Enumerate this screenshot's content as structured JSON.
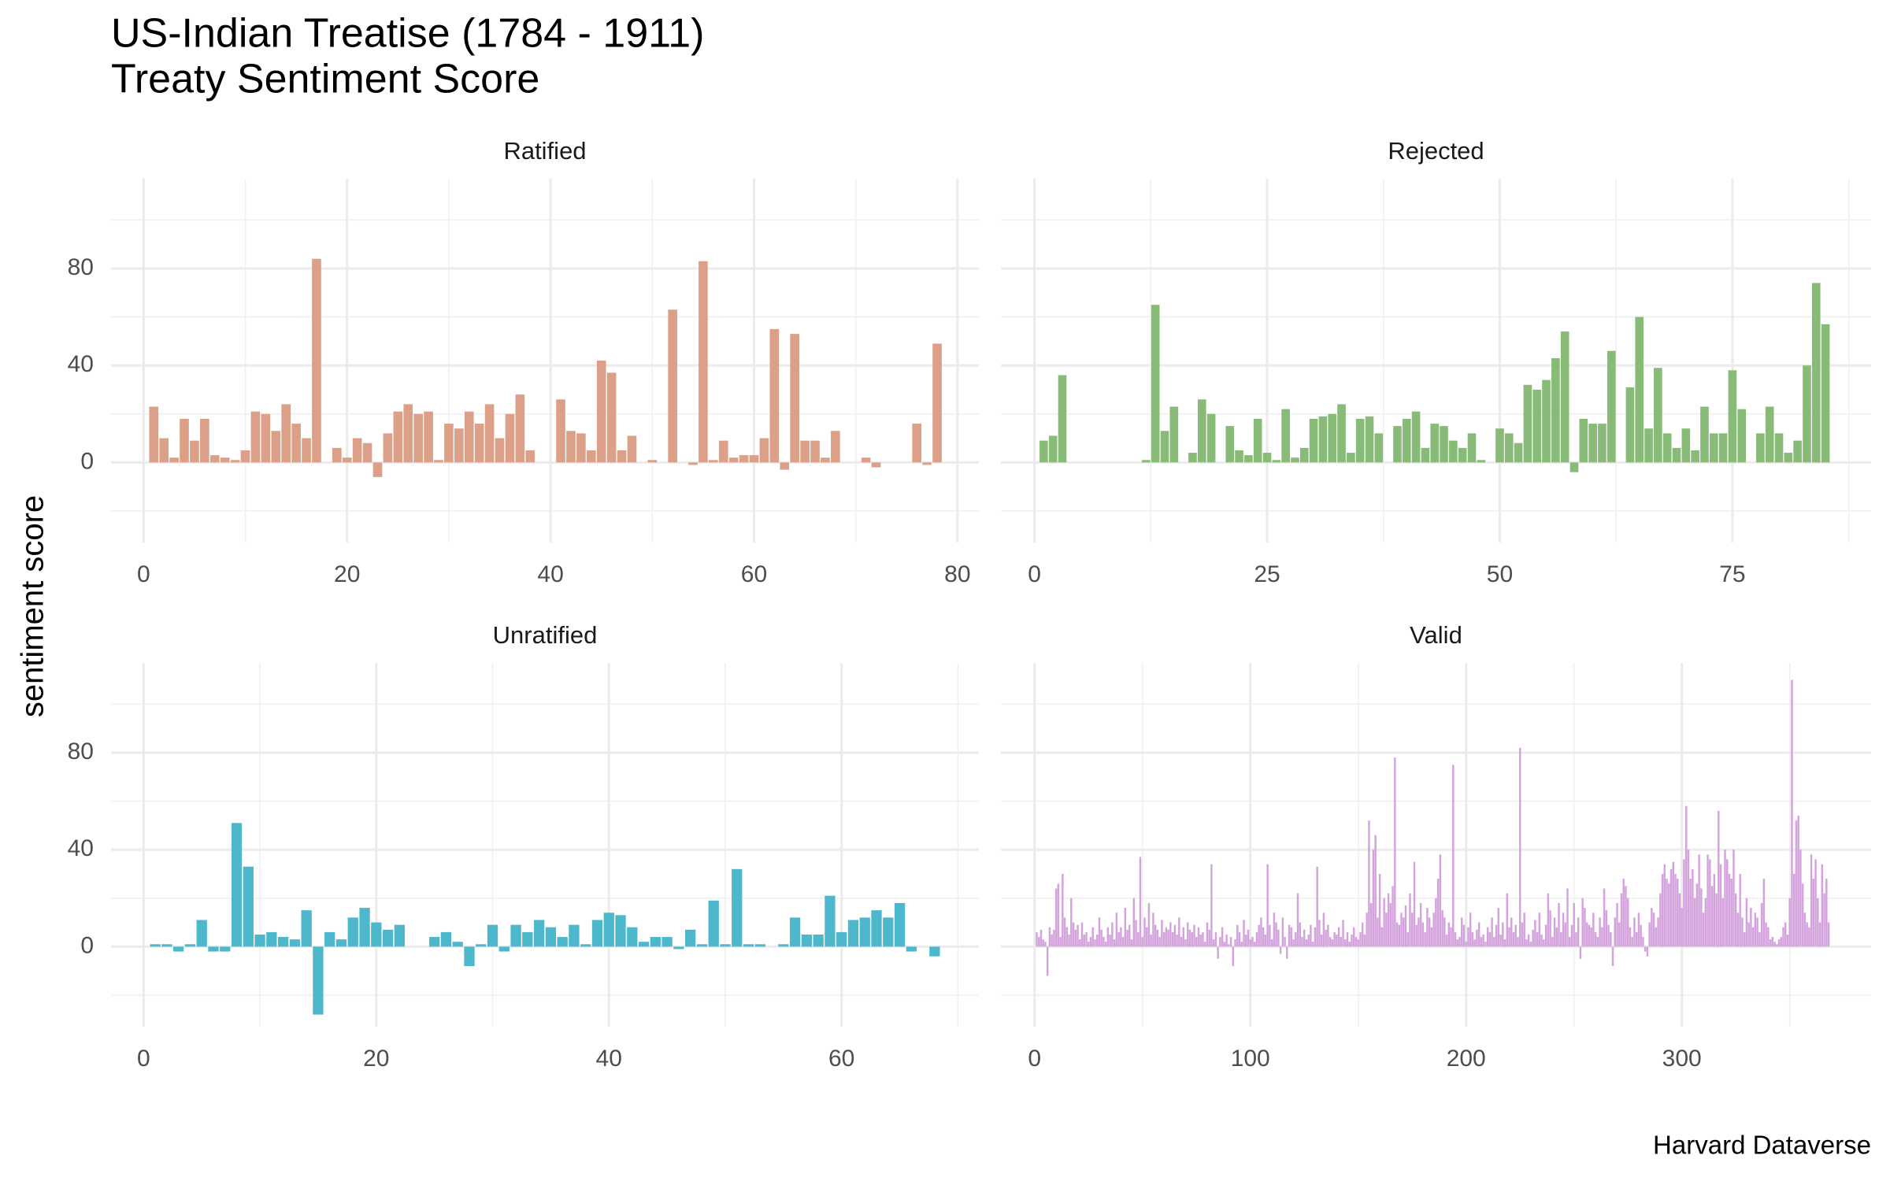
{
  "title": "US-Indian Treatise (1784 - 1911)",
  "subtitle": "Treaty Sentiment Score",
  "ylabel": "sentiment score",
  "caption": "Harvard Dataverse",
  "chart_data": [
    {
      "type": "bar",
      "title": "Ratified",
      "color": "#dba087",
      "grid": true,
      "xlim": [
        -3.2,
        82.1
      ],
      "xticks": [
        0,
        20,
        40,
        60,
        80
      ],
      "x_minor_ticks": [
        10,
        30,
        50,
        70
      ],
      "ylim": [
        -33,
        117
      ],
      "yticks": [
        0,
        40,
        80
      ],
      "y_minor_ticks": [
        -20,
        20,
        60,
        100
      ],
      "x": [
        1,
        2,
        3,
        4,
        5,
        6,
        7,
        8,
        9,
        10,
        11,
        12,
        13,
        14,
        15,
        16,
        17,
        18,
        19,
        20,
        21,
        22,
        23,
        24,
        25,
        26,
        27,
        28,
        29,
        30,
        31,
        32,
        33,
        34,
        35,
        36,
        37,
        38,
        39,
        40,
        41,
        42,
        43,
        44,
        45,
        46,
        47,
        48,
        49,
        50,
        51,
        52,
        53,
        54,
        55,
        56,
        57,
        58,
        59,
        60,
        61,
        62,
        63,
        64,
        65,
        66,
        67,
        68,
        69,
        70,
        71,
        72,
        73,
        74,
        75,
        76,
        77,
        78
      ],
      "values": [
        23,
        10,
        2,
        18,
        9,
        18,
        3,
        2,
        1,
        5,
        21,
        20,
        13,
        24,
        16,
        10,
        84,
        0,
        6,
        2,
        10,
        8,
        -6,
        12,
        21,
        24,
        20,
        21,
        1,
        16,
        14,
        21,
        16,
        24,
        10,
        20,
        28,
        5,
        0,
        0,
        26,
        13,
        12,
        5,
        42,
        37,
        5,
        11,
        0,
        1,
        0,
        63,
        0,
        -1,
        83,
        1,
        9,
        2,
        3,
        3,
        10,
        55,
        -3,
        53,
        9,
        9,
        2,
        13,
        0,
        0,
        2,
        -2,
        0,
        0,
        0,
        16,
        -1,
        49
      ]
    },
    {
      "type": "bar",
      "title": "Rejected",
      "color": "#88bb77",
      "grid": true,
      "xlim": [
        -3.6,
        89.9
      ],
      "xticks": [
        0,
        25,
        50,
        75
      ],
      "x_minor_ticks": [
        12.5,
        37.5,
        62.5,
        87.5
      ],
      "ylim": [
        -33,
        117
      ],
      "yticks": [
        0,
        40,
        80
      ],
      "y_minor_ticks": [
        -20,
        20,
        60,
        100
      ],
      "x": [
        1,
        2,
        3,
        4,
        5,
        6,
        7,
        8,
        9,
        10,
        11,
        12,
        13,
        14,
        15,
        16,
        17,
        18,
        19,
        20,
        21,
        22,
        23,
        24,
        25,
        26,
        27,
        28,
        29,
        30,
        31,
        32,
        33,
        34,
        35,
        36,
        37,
        38,
        39,
        40,
        41,
        42,
        43,
        44,
        45,
        46,
        47,
        48,
        49,
        50,
        51,
        52,
        53,
        54,
        55,
        56,
        57,
        58,
        59,
        60,
        61,
        62,
        63,
        64,
        65,
        66,
        67,
        68,
        69,
        70,
        71,
        72,
        73,
        74,
        75,
        76,
        77,
        78,
        79,
        80,
        81,
        82,
        83,
        84,
        85
      ],
      "values": [
        9,
        11,
        36,
        0,
        0,
        0,
        0,
        0,
        0,
        0,
        0,
        1,
        65,
        13,
        23,
        0,
        4,
        26,
        20,
        0,
        15,
        5,
        3,
        18,
        4,
        1,
        22,
        2,
        6,
        18,
        19,
        20,
        24,
        4,
        18,
        19,
        12,
        0,
        15,
        18,
        21,
        6,
        16,
        15,
        9,
        6,
        12,
        1,
        0,
        14,
        12,
        8,
        32,
        30,
        34,
        43,
        54,
        -4,
        18,
        16,
        16,
        46,
        0,
        31,
        60,
        14,
        39,
        12,
        6,
        14,
        5,
        23,
        12,
        12,
        38,
        22,
        0,
        12,
        23,
        12,
        4,
        9,
        40,
        74,
        57
      ]
    },
    {
      "type": "bar",
      "title": "Unratified",
      "color": "#4db8cc",
      "grid": true,
      "xlim": [
        -2.8,
        71.8
      ],
      "xticks": [
        0,
        20,
        40,
        60
      ],
      "x_minor_ticks": [
        10,
        30,
        50,
        70
      ],
      "ylim": [
        -33,
        117
      ],
      "yticks": [
        0,
        40,
        80
      ],
      "y_minor_ticks": [
        -20,
        20,
        60,
        100
      ],
      "x": [
        1,
        2,
        3,
        4,
        5,
        6,
        7,
        8,
        9,
        10,
        11,
        12,
        13,
        14,
        15,
        16,
        17,
        18,
        19,
        20,
        21,
        22,
        23,
        24,
        25,
        26,
        27,
        28,
        29,
        30,
        31,
        32,
        33,
        34,
        35,
        36,
        37,
        38,
        39,
        40,
        41,
        42,
        43,
        44,
        45,
        46,
        47,
        48,
        49,
        50,
        51,
        52,
        53,
        54,
        55,
        56,
        57,
        58,
        59,
        60,
        61,
        62,
        63,
        64,
        65,
        66,
        67,
        68
      ],
      "values": [
        1,
        1,
        -2,
        1,
        11,
        -2,
        -2,
        51,
        33,
        5,
        6,
        4,
        3,
        15,
        -28,
        6,
        3,
        12,
        16,
        10,
        7,
        9,
        0,
        0,
        4,
        6,
        2,
        -8,
        1,
        9,
        -2,
        9,
        6,
        11,
        8,
        4,
        9,
        1,
        11,
        14,
        13,
        8,
        2,
        4,
        4,
        -1,
        7,
        1,
        19,
        1,
        32,
        1,
        1,
        0,
        1,
        12,
        5,
        5,
        21,
        6,
        11,
        12,
        15,
        12,
        18,
        -2,
        0,
        -4
      ]
    },
    {
      "type": "bar",
      "title": "Valid",
      "color": "#d4a3de",
      "grid": true,
      "xlim": [
        -15.6,
        387.7
      ],
      "xticks": [
        0,
        100,
        200,
        300
      ],
      "x_minor_ticks": [
        50,
        150,
        250,
        350
      ],
      "ylim": [
        -33,
        117
      ],
      "yticks": [
        0,
        40,
        80
      ],
      "y_minor_ticks": [
        -20,
        20,
        60,
        100
      ],
      "x": [
        1,
        2,
        3,
        4,
        5,
        6,
        7,
        8,
        9,
        10,
        11,
        12,
        13,
        14,
        15,
        16,
        17,
        18,
        19,
        20,
        21,
        22,
        23,
        24,
        25,
        26,
        27,
        28,
        29,
        30,
        31,
        32,
        33,
        34,
        35,
        36,
        37,
        38,
        39,
        40,
        41,
        42,
        43,
        44,
        45,
        46,
        47,
        48,
        49,
        50,
        51,
        52,
        53,
        54,
        55,
        56,
        57,
        58,
        59,
        60,
        61,
        62,
        63,
        64,
        65,
        66,
        67,
        68,
        69,
        70,
        71,
        72,
        73,
        74,
        75,
        76,
        77,
        78,
        79,
        80,
        81,
        82,
        83,
        84,
        85,
        86,
        87,
        88,
        89,
        90,
        91,
        92,
        93,
        94,
        95,
        96,
        97,
        98,
        99,
        100,
        101,
        102,
        103,
        104,
        105,
        106,
        107,
        108,
        109,
        110,
        111,
        112,
        113,
        114,
        115,
        116,
        117,
        118,
        119,
        120,
        121,
        122,
        123,
        124,
        125,
        126,
        127,
        128,
        129,
        130,
        131,
        132,
        133,
        134,
        135,
        136,
        137,
        138,
        139,
        140,
        141,
        142,
        143,
        144,
        145,
        146,
        147,
        148,
        149,
        150,
        151,
        152,
        153,
        154,
        155,
        156,
        157,
        158,
        159,
        160,
        161,
        162,
        163,
        164,
        165,
        166,
        167,
        168,
        169,
        170,
        171,
        172,
        173,
        174,
        175,
        176,
        177,
        178,
        179,
        180,
        181,
        182,
        183,
        184,
        185,
        186,
        187,
        188,
        189,
        190,
        191,
        192,
        193,
        194,
        195,
        196,
        197,
        198,
        199,
        200,
        201,
        202,
        203,
        204,
        205,
        206,
        207,
        208,
        209,
        210,
        211,
        212,
        213,
        214,
        215,
        216,
        217,
        218,
        219,
        220,
        221,
        222,
        223,
        224,
        225,
        226,
        227,
        228,
        229,
        230,
        231,
        232,
        233,
        234,
        235,
        236,
        237,
        238,
        239,
        240,
        241,
        242,
        243,
        244,
        245,
        246,
        247,
        248,
        249,
        250,
        251,
        252,
        253,
        254,
        255,
        256,
        257,
        258,
        259,
        260,
        261,
        262,
        263,
        264,
        265,
        266,
        267,
        268,
        269,
        270,
        271,
        272,
        273,
        274,
        275,
        276,
        277,
        278,
        279,
        280,
        281,
        282,
        283,
        284,
        285,
        286,
        287,
        288,
        289,
        290,
        291,
        292,
        293,
        294,
        295,
        296,
        297,
        298,
        299,
        300,
        301,
        302,
        303,
        304,
        305,
        306,
        307,
        308,
        309,
        310,
        311,
        312,
        313,
        314,
        315,
        316,
        317,
        318,
        319,
        320,
        321,
        322,
        323,
        324,
        325,
        326,
        327,
        328,
        329,
        330,
        331,
        332,
        333,
        334,
        335,
        336,
        337,
        338,
        339,
        340,
        341,
        342,
        343,
        344,
        345,
        346,
        347,
        348,
        349,
        350,
        351,
        352,
        353,
        354,
        355,
        356,
        357,
        358,
        359,
        360,
        361,
        362,
        363,
        364,
        365,
        366,
        367,
        368
      ],
      "values": [
        6,
        4,
        7,
        3,
        2,
        -12,
        8,
        5,
        7,
        24,
        26,
        4,
        30,
        12,
        8,
        5,
        20,
        10,
        7,
        9,
        3,
        10,
        5,
        6,
        2,
        4,
        8,
        3,
        5,
        12,
        7,
        4,
        2,
        8,
        5,
        10,
        3,
        14,
        6,
        8,
        4,
        16,
        7,
        9,
        3,
        20,
        11,
        6,
        37,
        4,
        12,
        8,
        18,
        5,
        14,
        9,
        7,
        4,
        11,
        6,
        8,
        7,
        10,
        6,
        9,
        5,
        12,
        4,
        8,
        3,
        10,
        7,
        6,
        9,
        4,
        8,
        5,
        6,
        2,
        10,
        7,
        34,
        3,
        6,
        -5,
        4,
        8,
        2,
        5,
        1,
        4,
        -8,
        3,
        9,
        6,
        2,
        11,
        5,
        7,
        3,
        4,
        2,
        6,
        9,
        12,
        8,
        5,
        34,
        9,
        3,
        14,
        10,
        7,
        -3,
        12,
        4,
        -5,
        9,
        8,
        3,
        6,
        22,
        10,
        4,
        7,
        3,
        5,
        9,
        2,
        8,
        33,
        11,
        5,
        14,
        7,
        9,
        4,
        3,
        6,
        5,
        8,
        4,
        11,
        3,
        6,
        2,
        5,
        8,
        4,
        3,
        6,
        10,
        5,
        14,
        52,
        18,
        40,
        46,
        12,
        30,
        8,
        20,
        14,
        22,
        18,
        25,
        78,
        10,
        9,
        14,
        12,
        17,
        6,
        22,
        14,
        35,
        9,
        12,
        18,
        10,
        6,
        16,
        12,
        8,
        14,
        20,
        28,
        38,
        15,
        12,
        5,
        10,
        8,
        75,
        6,
        3,
        4,
        12,
        9,
        2,
        8,
        14,
        6,
        3,
        7,
        10,
        4,
        5,
        2,
        8,
        6,
        12,
        4,
        9,
        16,
        5,
        10,
        3,
        22,
        8,
        12,
        6,
        9,
        4,
        82,
        10,
        14,
        3,
        5,
        2,
        7,
        11,
        6,
        14,
        5,
        3,
        9,
        22,
        15,
        4,
        12,
        8,
        18,
        6,
        14,
        10,
        24,
        4,
        9,
        18,
        6,
        12,
        -5,
        20,
        16,
        10,
        9,
        8,
        14,
        6,
        4,
        12,
        8,
        24,
        15,
        9,
        6,
        -8,
        12,
        18,
        10,
        22,
        28,
        25,
        20,
        8,
        4,
        12,
        6,
        14,
        9,
        4,
        -2,
        -4,
        10,
        16,
        14,
        8,
        12,
        22,
        30,
        34,
        28,
        26,
        32,
        35,
        30,
        28,
        22,
        16,
        36,
        58,
        40,
        28,
        32,
        20,
        26,
        38,
        24,
        14,
        20,
        38,
        36,
        25,
        30,
        22,
        56,
        34,
        20,
        40,
        36,
        30,
        28,
        40,
        22,
        14,
        30,
        12,
        6,
        20,
        10,
        16,
        8,
        14,
        12,
        6,
        18,
        28,
        10,
        8,
        3,
        4,
        2,
        1,
        3,
        4,
        8,
        10,
        5,
        20,
        110,
        30,
        52,
        54,
        40,
        26,
        14,
        10,
        8,
        38,
        28,
        36,
        20,
        10,
        34,
        22,
        28,
        10
      ]
    }
  ]
}
